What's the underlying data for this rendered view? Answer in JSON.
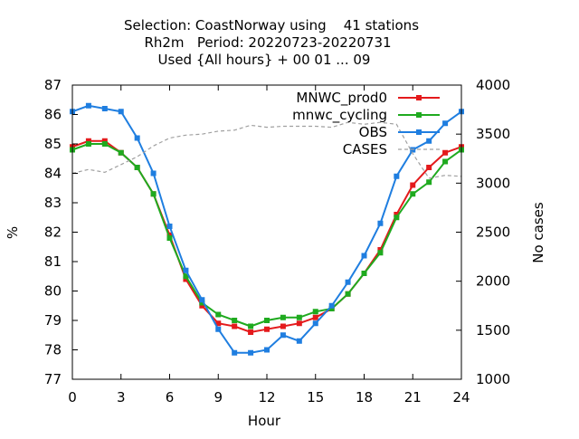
{
  "chart_data": {
    "type": "line",
    "title_lines": [
      "Selection: CoastNorway using    41 stations",
      "Rh2m   Period: 20220723-20220731",
      "Used {All hours} + 00 01 ... 09"
    ],
    "xlabel": "Hour",
    "ylabel": "%",
    "y2label": "No cases",
    "xlim": [
      0,
      24
    ],
    "ylim": [
      77,
      87
    ],
    "y2lim": [
      1000,
      4000
    ],
    "xticks": [
      0,
      3,
      6,
      9,
      12,
      15,
      18,
      21,
      24
    ],
    "yticks": [
      77,
      78,
      79,
      80,
      81,
      82,
      83,
      84,
      85,
      86,
      87
    ],
    "y2ticks": [
      1000,
      1500,
      2000,
      2500,
      3000,
      3500,
      4000
    ],
    "grid": false,
    "legend_position": "top-right",
    "x": [
      0,
      1,
      2,
      3,
      4,
      5,
      6,
      7,
      8,
      9,
      10,
      11,
      12,
      13,
      14,
      15,
      16,
      17,
      18,
      19,
      20,
      21,
      22,
      23,
      24
    ],
    "series": [
      {
        "name": "MNWC_prod0",
        "color": "#e41a1c",
        "axis": "y",
        "values": [
          84.9,
          85.1,
          85.1,
          84.7,
          84.2,
          83.3,
          81.9,
          80.4,
          79.5,
          78.9,
          78.8,
          78.6,
          78.7,
          78.8,
          78.9,
          79.1,
          79.4,
          79.9,
          80.6,
          81.4,
          82.6,
          83.6,
          84.2,
          84.7,
          84.9
        ]
      },
      {
        "name": "mnwc_cycling",
        "color": "#1faa1f",
        "axis": "y",
        "values": [
          84.8,
          85.0,
          85.0,
          84.7,
          84.2,
          83.3,
          81.8,
          80.5,
          79.6,
          79.2,
          79.0,
          78.8,
          79.0,
          79.1,
          79.1,
          79.3,
          79.4,
          79.9,
          80.6,
          81.3,
          82.5,
          83.3,
          83.7,
          84.4,
          84.8
        ]
      },
      {
        "name": "OBS",
        "color": "#1f7ee0",
        "axis": "y",
        "values": [
          86.1,
          86.3,
          86.2,
          86.1,
          85.2,
          84.0,
          82.2,
          80.7,
          79.7,
          78.7,
          77.9,
          77.9,
          78.0,
          78.5,
          78.3,
          78.9,
          79.5,
          80.3,
          81.2,
          82.3,
          83.9,
          84.8,
          85.1,
          85.7,
          86.1
        ]
      },
      {
        "name": "CASES",
        "color": "#a0a0a0",
        "axis": "y2",
        "dashed": true,
        "values": [
          3100,
          3140,
          3110,
          3190,
          3270,
          3380,
          3460,
          3490,
          3500,
          3530,
          3540,
          3590,
          3570,
          3580,
          3580,
          3580,
          3570,
          3620,
          3600,
          3620,
          3600,
          3300,
          3050,
          3080,
          3070
        ]
      }
    ]
  }
}
